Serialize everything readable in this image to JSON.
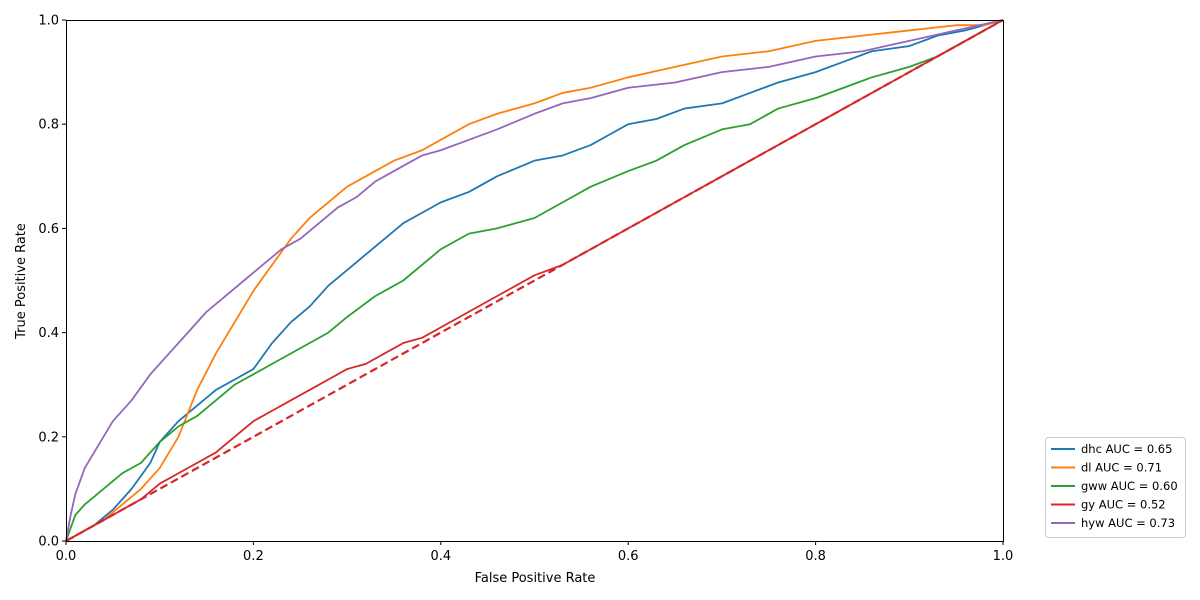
{
  "chart_data": {
    "type": "line",
    "title": "",
    "xlabel": "False Positive Rate",
    "ylabel": "True Positive Rate",
    "xlim": [
      0.0,
      1.0
    ],
    "ylim": [
      0.0,
      1.0
    ],
    "xticks": [
      "0.0",
      "0.2",
      "0.4",
      "0.6",
      "0.8",
      "1.0"
    ],
    "yticks": [
      "0.0",
      "0.2",
      "0.4",
      "0.6",
      "0.8",
      "1.0"
    ],
    "grid": false,
    "legend_position": "outside-lower-right",
    "series": [
      {
        "name": "dhc AUC = 0.65",
        "color": "#1f77b4",
        "x": [
          0,
          0.01,
          0.03,
          0.05,
          0.07,
          0.09,
          0.1,
          0.12,
          0.14,
          0.16,
          0.18,
          0.2,
          0.22,
          0.24,
          0.26,
          0.28,
          0.3,
          0.32,
          0.34,
          0.36,
          0.38,
          0.4,
          0.43,
          0.46,
          0.5,
          0.53,
          0.56,
          0.58,
          0.6,
          0.63,
          0.66,
          0.7,
          0.73,
          0.76,
          0.8,
          0.83,
          0.86,
          0.9,
          0.93,
          0.96,
          1.0
        ],
        "y": [
          0,
          0.01,
          0.03,
          0.06,
          0.1,
          0.15,
          0.19,
          0.23,
          0.26,
          0.29,
          0.31,
          0.33,
          0.38,
          0.42,
          0.45,
          0.49,
          0.52,
          0.55,
          0.58,
          0.61,
          0.63,
          0.65,
          0.67,
          0.7,
          0.73,
          0.74,
          0.76,
          0.78,
          0.8,
          0.81,
          0.83,
          0.84,
          0.86,
          0.88,
          0.9,
          0.92,
          0.94,
          0.95,
          0.97,
          0.98,
          1.0
        ]
      },
      {
        "name": "dl AUC = 0.71",
        "color": "#ff7f0e",
        "x": [
          0,
          0.02,
          0.04,
          0.06,
          0.08,
          0.1,
          0.12,
          0.14,
          0.16,
          0.18,
          0.2,
          0.22,
          0.24,
          0.26,
          0.28,
          0.3,
          0.32,
          0.35,
          0.38,
          0.4,
          0.43,
          0.46,
          0.5,
          0.53,
          0.56,
          0.6,
          0.65,
          0.7,
          0.75,
          0.8,
          0.85,
          0.9,
          0.95,
          0.98,
          1.0
        ],
        "y": [
          0,
          0.02,
          0.04,
          0.07,
          0.1,
          0.14,
          0.2,
          0.29,
          0.36,
          0.42,
          0.48,
          0.53,
          0.58,
          0.62,
          0.65,
          0.68,
          0.7,
          0.73,
          0.75,
          0.77,
          0.8,
          0.82,
          0.84,
          0.86,
          0.87,
          0.89,
          0.91,
          0.93,
          0.94,
          0.96,
          0.97,
          0.98,
          0.99,
          0.99,
          1.0
        ]
      },
      {
        "name": "gww AUC = 0.60",
        "color": "#2ca02c",
        "x": [
          0,
          0.01,
          0.02,
          0.04,
          0.06,
          0.08,
          0.1,
          0.12,
          0.14,
          0.16,
          0.18,
          0.2,
          0.22,
          0.25,
          0.28,
          0.3,
          0.33,
          0.36,
          0.38,
          0.4,
          0.43,
          0.46,
          0.5,
          0.53,
          0.56,
          0.6,
          0.63,
          0.66,
          0.7,
          0.73,
          0.76,
          0.8,
          0.83,
          0.86,
          0.9,
          0.93,
          0.96,
          1.0
        ],
        "y": [
          0,
          0.05,
          0.07,
          0.1,
          0.13,
          0.15,
          0.19,
          0.22,
          0.24,
          0.27,
          0.3,
          0.32,
          0.34,
          0.37,
          0.4,
          0.43,
          0.47,
          0.5,
          0.53,
          0.56,
          0.59,
          0.6,
          0.62,
          0.65,
          0.68,
          0.71,
          0.73,
          0.76,
          0.79,
          0.8,
          0.83,
          0.85,
          0.87,
          0.89,
          0.91,
          0.93,
          0.96,
          1.0
        ]
      },
      {
        "name": "gy AUC = 0.52",
        "color": "#d62728",
        "x": [
          0,
          0.02,
          0.04,
          0.06,
          0.08,
          0.1,
          0.12,
          0.14,
          0.16,
          0.18,
          0.2,
          0.22,
          0.24,
          0.26,
          0.28,
          0.3,
          0.32,
          0.34,
          0.36,
          0.38,
          0.4,
          0.43,
          0.46,
          0.5,
          0.53,
          0.56,
          0.6,
          0.63,
          0.66,
          0.7,
          0.73,
          0.76,
          0.8,
          0.83,
          0.86,
          0.9,
          0.93,
          0.96,
          1.0
        ],
        "y": [
          0,
          0.02,
          0.04,
          0.06,
          0.08,
          0.11,
          0.13,
          0.15,
          0.17,
          0.2,
          0.23,
          0.25,
          0.27,
          0.29,
          0.31,
          0.33,
          0.34,
          0.36,
          0.38,
          0.39,
          0.41,
          0.44,
          0.47,
          0.51,
          0.53,
          0.56,
          0.6,
          0.63,
          0.66,
          0.7,
          0.73,
          0.76,
          0.8,
          0.83,
          0.86,
          0.9,
          0.93,
          0.96,
          1.0
        ]
      },
      {
        "name": "hyw AUC = 0.73",
        "color": "#9467bd",
        "x": [
          0,
          0.005,
          0.01,
          0.02,
          0.03,
          0.04,
          0.05,
          0.07,
          0.09,
          0.11,
          0.13,
          0.15,
          0.17,
          0.19,
          0.21,
          0.23,
          0.25,
          0.27,
          0.29,
          0.31,
          0.33,
          0.35,
          0.38,
          0.4,
          0.43,
          0.46,
          0.5,
          0.53,
          0.56,
          0.6,
          0.65,
          0.7,
          0.75,
          0.8,
          0.85,
          0.9,
          0.95,
          1.0
        ],
        "y": [
          0,
          0.05,
          0.09,
          0.14,
          0.17,
          0.2,
          0.23,
          0.27,
          0.32,
          0.36,
          0.4,
          0.44,
          0.47,
          0.5,
          0.53,
          0.56,
          0.58,
          0.61,
          0.64,
          0.66,
          0.69,
          0.71,
          0.74,
          0.75,
          0.77,
          0.79,
          0.82,
          0.84,
          0.85,
          0.87,
          0.88,
          0.9,
          0.91,
          0.93,
          0.94,
          0.96,
          0.98,
          1.0
        ]
      }
    ],
    "reference_line": {
      "color": "#d62728",
      "style": "dashed",
      "x": [
        0,
        1
      ],
      "y": [
        0,
        1
      ]
    }
  }
}
